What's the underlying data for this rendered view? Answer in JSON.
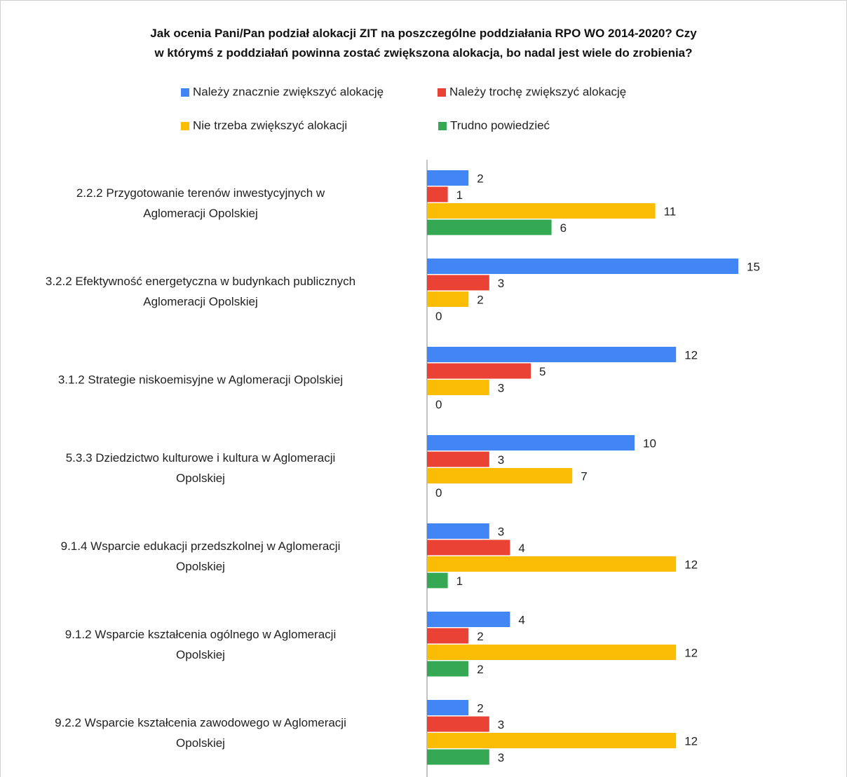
{
  "chart_data": {
    "type": "hbar",
    "title": "Jak ocenia Pani/Pan podział alokacji ZIT na poszczególne poddziałania RPO WO 2014-2020? Czy\nw którymś z poddziałań powinna zostać zwiększona alokacja, bo nadal jest wiele do zrobienia?",
    "categories": [
      "2.2.2 Przygotowanie terenów inwestycyjnych w\nAglomeracji Opolskiej",
      "3.2.2 Efektywność energetyczna w budynkach publicznych\nAglomeracji Opolskiej",
      "3.1.2 Strategie niskoemisyjne w Aglomeracji Opolskiej",
      "5.3.3 Dziedzictwo kulturowe i kultura w Aglomeracji\nOpolskiej",
      "9.1.4 Wsparcie edukacji przedszkolnej w Aglomeracji\nOpolskiej",
      "9.1.2 Wsparcie kształcenia ogólnego w Aglomeracji\nOpolskiej",
      "9.2.2 Wsparcie kształcenia zawodowego w Aglomeracji\nOpolskiej"
    ],
    "series": [
      {
        "name": "Należy znacznie zwiększyć alokację",
        "color": "#4285f4",
        "values": [
          2,
          15,
          12,
          10,
          3,
          4,
          2
        ]
      },
      {
        "name": "Należy trochę zwiększyć alokację",
        "color": "#ea4335",
        "values": [
          1,
          3,
          5,
          3,
          4,
          2,
          3
        ]
      },
      {
        "name": "Nie trzeba zwiększyć alokacji",
        "color": "#fbbc04",
        "values": [
          11,
          2,
          3,
          7,
          12,
          12,
          12
        ]
      },
      {
        "name": "Trudno powiedzieć",
        "color": "#34a853",
        "values": [
          6,
          0,
          0,
          0,
          1,
          2,
          3
        ]
      }
    ],
    "xlim": [
      0,
      15
    ],
    "legend": "top"
  }
}
